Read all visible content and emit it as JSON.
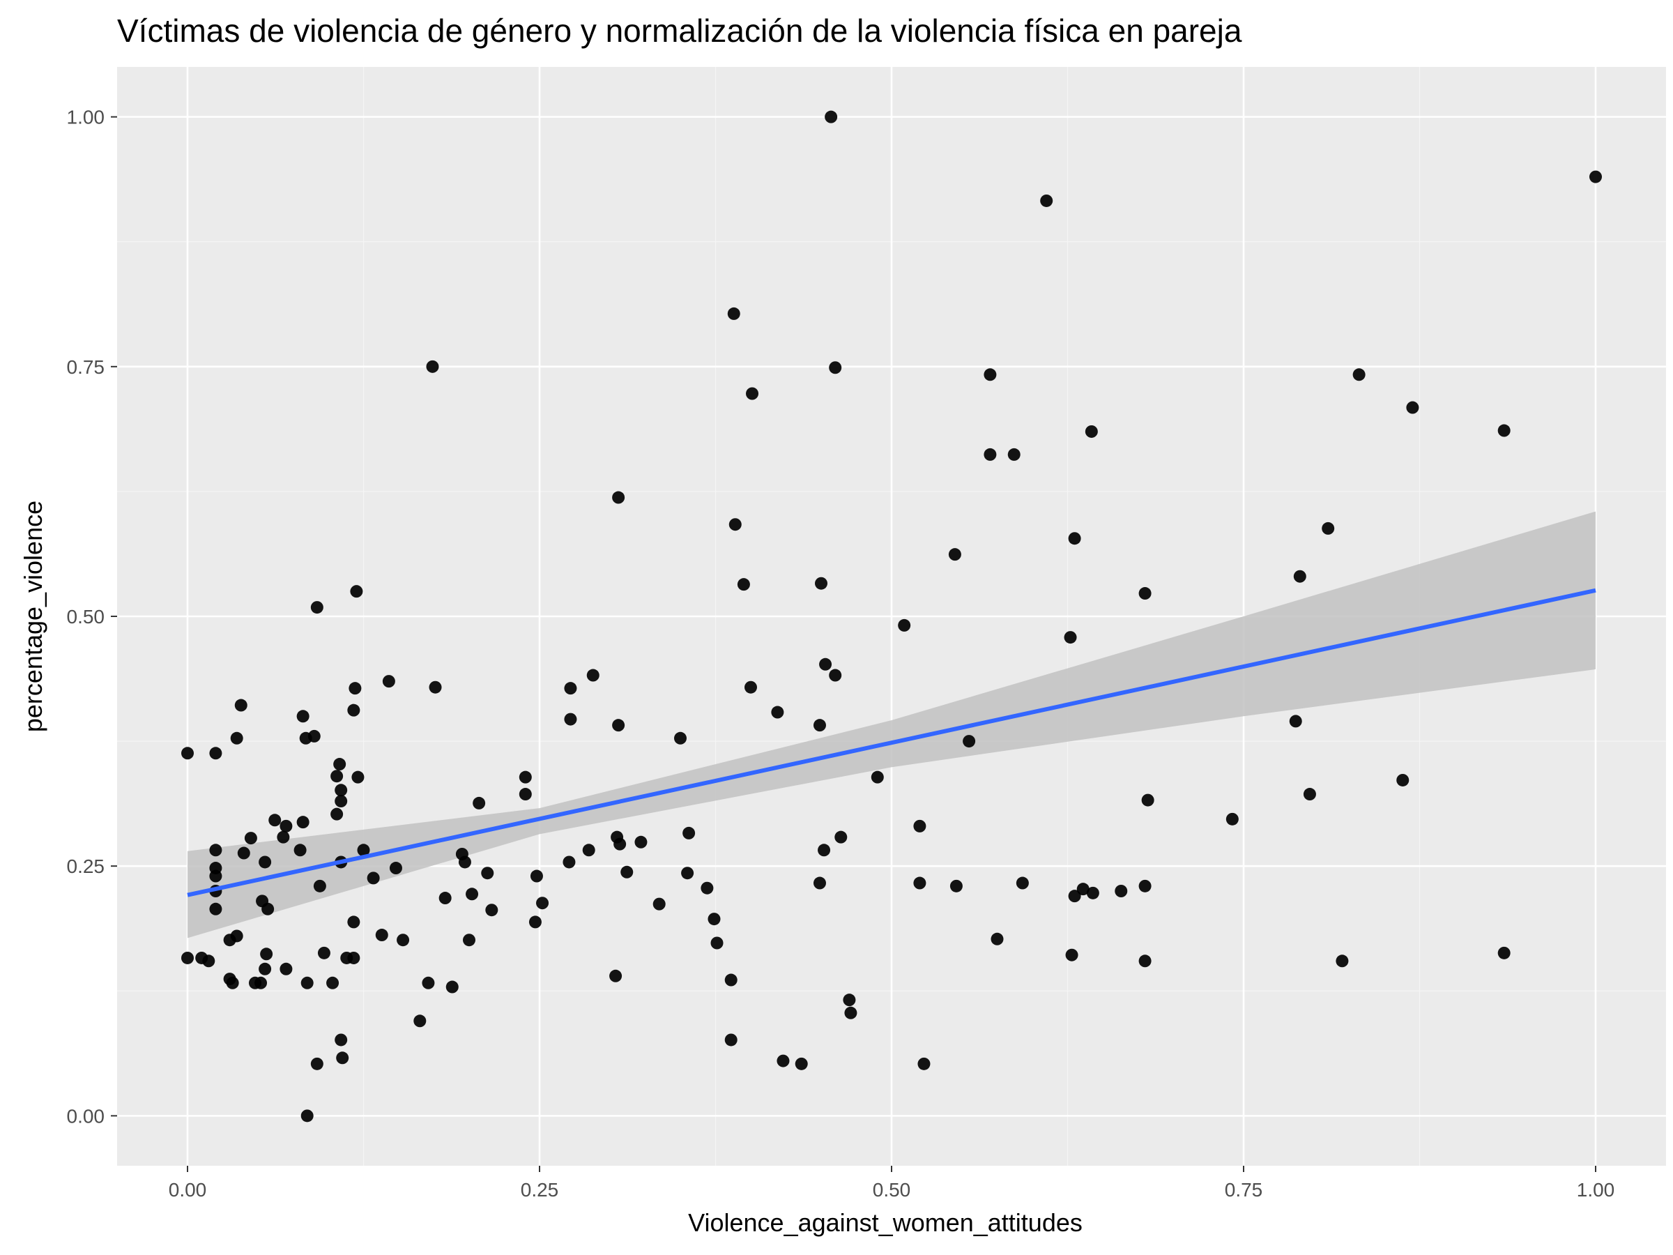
{
  "colors": {
    "panel_background": "#ebebeb",
    "grid_major": "#ffffff",
    "grid_minor": "#f5f5f5",
    "point": "#000000",
    "trend_line": "#3366ff",
    "confidence_band": "#c2c2c2",
    "tick_text": "#4d4d4d",
    "tick_mark": "#333333"
  },
  "chart_data": {
    "type": "scatter",
    "title": "Víctimas de violencia de género y normalización de la violencia física en pareja",
    "xlabel": "Violence_against_women_attitudes",
    "ylabel": "percentage_violence",
    "xlim": [
      -0.05,
      1.05
    ],
    "ylim": [
      -0.05,
      1.05
    ],
    "x_ticks": [
      0,
      0.25,
      0.5,
      0.75,
      1
    ],
    "x_tick_labels": [
      "0.00",
      "0.25",
      "0.50",
      "0.75",
      "1.00"
    ],
    "y_ticks": [
      0,
      0.25,
      0.5,
      0.75,
      1
    ],
    "y_tick_labels": [
      "0.00",
      "0.25",
      "0.50",
      "0.75",
      "1.00"
    ],
    "grid": true,
    "legend": "none",
    "points": [
      [
        0.0,
        0.363
      ],
      [
        0.0,
        0.158
      ],
      [
        0.01,
        0.158
      ],
      [
        0.015,
        0.155
      ],
      [
        0.02,
        0.363
      ],
      [
        0.02,
        0.266
      ],
      [
        0.02,
        0.248
      ],
      [
        0.02,
        0.24
      ],
      [
        0.02,
        0.225
      ],
      [
        0.02,
        0.207
      ],
      [
        0.03,
        0.176
      ],
      [
        0.03,
        0.137
      ],
      [
        0.032,
        0.133
      ],
      [
        0.035,
        0.18
      ],
      [
        0.035,
        0.378
      ],
      [
        0.038,
        0.411
      ],
      [
        0.04,
        0.263
      ],
      [
        0.045,
        0.278
      ],
      [
        0.048,
        0.133
      ],
      [
        0.052,
        0.133
      ],
      [
        0.053,
        0.215
      ],
      [
        0.055,
        0.254
      ],
      [
        0.055,
        0.147
      ],
      [
        0.056,
        0.162
      ],
      [
        0.057,
        0.207
      ],
      [
        0.062,
        0.296
      ],
      [
        0.068,
        0.279
      ],
      [
        0.07,
        0.29
      ],
      [
        0.07,
        0.147
      ],
      [
        0.08,
        0.266
      ],
      [
        0.082,
        0.4
      ],
      [
        0.082,
        0.294
      ],
      [
        0.084,
        0.378
      ],
      [
        0.085,
        0.133
      ],
      [
        0.085,
        0.0
      ],
      [
        0.09,
        0.38
      ],
      [
        0.092,
        0.509
      ],
      [
        0.092,
        0.052
      ],
      [
        0.094,
        0.23
      ],
      [
        0.097,
        0.163
      ],
      [
        0.103,
        0.133
      ],
      [
        0.106,
        0.34
      ],
      [
        0.106,
        0.302
      ],
      [
        0.108,
        0.352
      ],
      [
        0.109,
        0.326
      ],
      [
        0.109,
        0.315
      ],
      [
        0.109,
        0.254
      ],
      [
        0.109,
        0.076
      ],
      [
        0.11,
        0.058
      ],
      [
        0.113,
        0.158
      ],
      [
        0.118,
        0.406
      ],
      [
        0.118,
        0.194
      ],
      [
        0.118,
        0.158
      ],
      [
        0.119,
        0.428
      ],
      [
        0.12,
        0.525
      ],
      [
        0.121,
        0.339
      ],
      [
        0.125,
        0.266
      ],
      [
        0.132,
        0.238
      ],
      [
        0.138,
        0.181
      ],
      [
        0.143,
        0.435
      ],
      [
        0.148,
        0.248
      ],
      [
        0.153,
        0.176
      ],
      [
        0.165,
        0.095
      ],
      [
        0.171,
        0.133
      ],
      [
        0.174,
        0.75
      ],
      [
        0.176,
        0.429
      ],
      [
        0.183,
        0.218
      ],
      [
        0.188,
        0.129
      ],
      [
        0.195,
        0.262
      ],
      [
        0.197,
        0.254
      ],
      [
        0.2,
        0.176
      ],
      [
        0.202,
        0.222
      ],
      [
        0.207,
        0.313
      ],
      [
        0.213,
        0.243
      ],
      [
        0.216,
        0.206
      ],
      [
        0.24,
        0.339
      ],
      [
        0.24,
        0.322
      ],
      [
        0.247,
        0.194
      ],
      [
        0.248,
        0.24
      ],
      [
        0.252,
        0.213
      ],
      [
        0.271,
        0.254
      ],
      [
        0.272,
        0.428
      ],
      [
        0.272,
        0.397
      ],
      [
        0.285,
        0.266
      ],
      [
        0.288,
        0.441
      ],
      [
        0.304,
        0.14
      ],
      [
        0.305,
        0.279
      ],
      [
        0.306,
        0.391
      ],
      [
        0.306,
        0.619
      ],
      [
        0.307,
        0.272
      ],
      [
        0.312,
        0.244
      ],
      [
        0.322,
        0.274
      ],
      [
        0.335,
        0.212
      ],
      [
        0.35,
        0.378
      ],
      [
        0.355,
        0.243
      ],
      [
        0.356,
        0.283
      ],
      [
        0.369,
        0.228
      ],
      [
        0.374,
        0.197
      ],
      [
        0.376,
        0.173
      ],
      [
        0.386,
        0.136
      ],
      [
        0.386,
        0.076
      ],
      [
        0.388,
        0.803
      ],
      [
        0.389,
        0.592
      ],
      [
        0.395,
        0.532
      ],
      [
        0.4,
        0.429
      ],
      [
        0.401,
        0.723
      ],
      [
        0.419,
        0.404
      ],
      [
        0.423,
        0.055
      ],
      [
        0.436,
        0.052
      ],
      [
        0.449,
        0.391
      ],
      [
        0.449,
        0.233
      ],
      [
        0.45,
        0.533
      ],
      [
        0.452,
        0.266
      ],
      [
        0.453,
        0.452
      ],
      [
        0.457,
        1.0
      ],
      [
        0.46,
        0.441
      ],
      [
        0.46,
        0.749
      ],
      [
        0.464,
        0.279
      ],
      [
        0.47,
        0.116
      ],
      [
        0.471,
        0.103
      ],
      [
        0.49,
        0.339
      ],
      [
        0.509,
        0.491
      ],
      [
        0.52,
        0.29
      ],
      [
        0.52,
        0.233
      ],
      [
        0.523,
        0.052
      ],
      [
        0.545,
        0.562
      ],
      [
        0.546,
        0.23
      ],
      [
        0.555,
        0.375
      ],
      [
        0.57,
        0.742
      ],
      [
        0.57,
        0.662
      ],
      [
        0.575,
        0.177
      ],
      [
        0.587,
        0.662
      ],
      [
        0.593,
        0.233
      ],
      [
        0.61,
        0.916
      ],
      [
        0.627,
        0.479
      ],
      [
        0.628,
        0.161
      ],
      [
        0.63,
        0.578
      ],
      [
        0.63,
        0.22
      ],
      [
        0.636,
        0.227
      ],
      [
        0.642,
        0.685
      ],
      [
        0.643,
        0.223
      ],
      [
        0.663,
        0.225
      ],
      [
        0.68,
        0.523
      ],
      [
        0.68,
        0.23
      ],
      [
        0.68,
        0.155
      ],
      [
        0.682,
        0.316
      ],
      [
        0.742,
        0.297
      ],
      [
        0.787,
        0.395
      ],
      [
        0.79,
        0.54
      ],
      [
        0.797,
        0.322
      ],
      [
        0.81,
        0.588
      ],
      [
        0.82,
        0.155
      ],
      [
        0.832,
        0.742
      ],
      [
        0.863,
        0.336
      ],
      [
        0.87,
        0.709
      ],
      [
        0.935,
        0.686
      ],
      [
        0.935,
        0.163
      ],
      [
        1.0,
        0.94
      ]
    ],
    "trend_line": {
      "x": [
        0.0,
        1.0
      ],
      "y": [
        0.221,
        0.526
      ]
    },
    "confidence_band": {
      "x": [
        0.0,
        0.25,
        0.5,
        0.75,
        1.0
      ],
      "upper": [
        0.265,
        0.308,
        0.396,
        0.5,
        0.605
      ],
      "lower": [
        0.178,
        0.282,
        0.349,
        0.4,
        0.447
      ]
    }
  }
}
